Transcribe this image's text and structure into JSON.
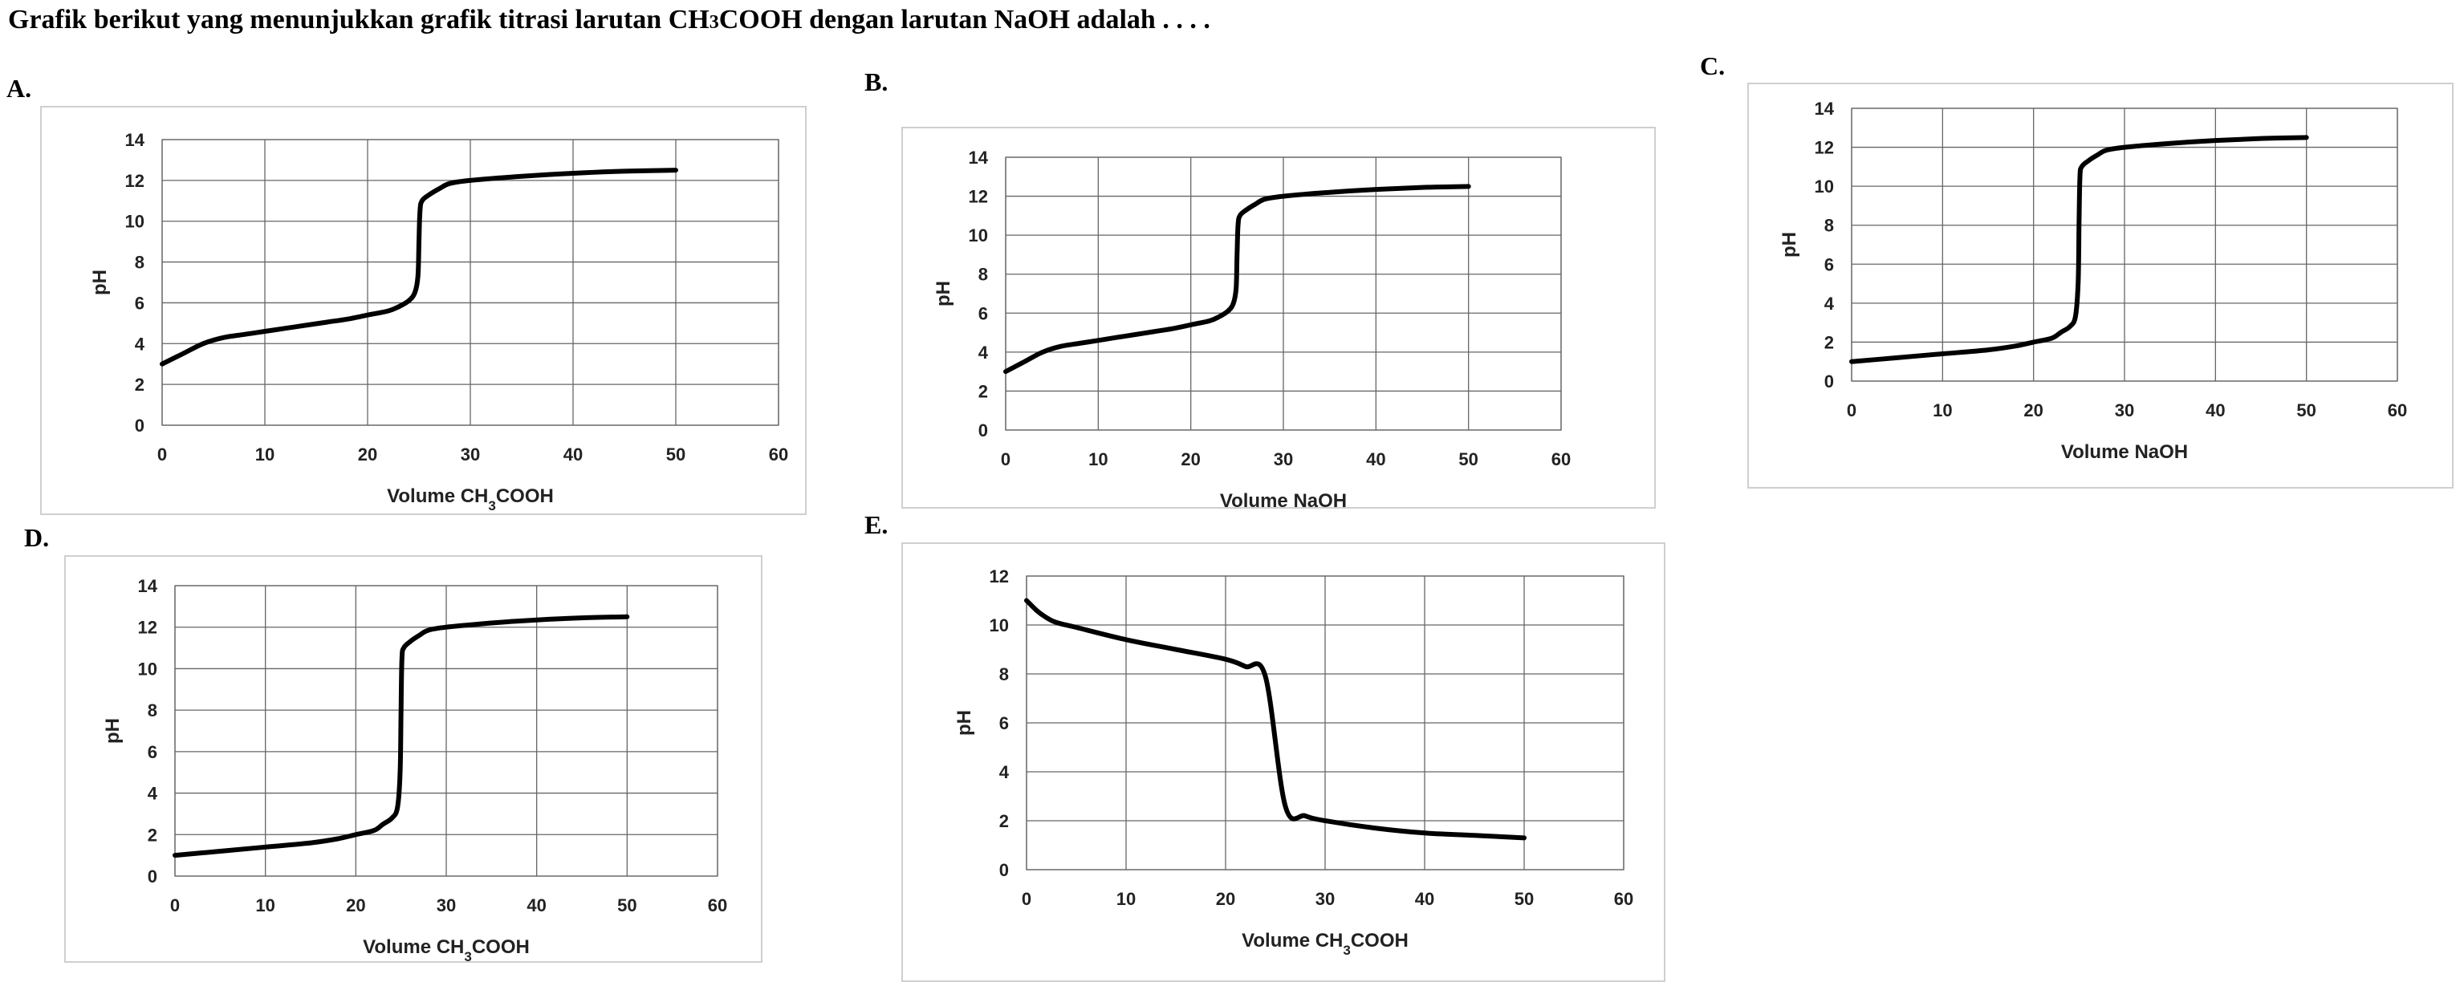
{
  "question": {
    "text_before": "Grafik berikut yang menunjukkan grafik titrasi larutan CH",
    "sub": "3",
    "text_after": "COOH dengan larutan  NaOH adalah . . . ."
  },
  "chart_data": [
    {
      "type": "line",
      "label": "A.",
      "xlabel": "Volume CH3COOH",
      "ylabel": "pH",
      "xlim": [
        0,
        60
      ],
      "ylim": [
        0,
        14
      ],
      "xticks": [
        0,
        10,
        20,
        30,
        40,
        50,
        60
      ],
      "yticks": [
        0,
        2,
        4,
        6,
        8,
        10,
        12,
        14
      ],
      "grid": true,
      "x": [
        0,
        2,
        4,
        6,
        8,
        10,
        12,
        14,
        16,
        18,
        20,
        22,
        23,
        24,
        24.6,
        24.9,
        25,
        25.1,
        25.3,
        26,
        27,
        28,
        30,
        35,
        40,
        45,
        50
      ],
      "y": [
        3.0,
        3.5,
        4.0,
        4.3,
        4.45,
        4.6,
        4.75,
        4.9,
        5.05,
        5.2,
        5.4,
        5.6,
        5.8,
        6.1,
        6.5,
        7.3,
        9.0,
        10.5,
        11.0,
        11.3,
        11.6,
        11.85,
        12.0,
        12.2,
        12.35,
        12.45,
        12.5
      ]
    },
    {
      "type": "line",
      "label": "B.",
      "xlabel": "Volume NaOH",
      "ylabel": "pH",
      "xlim": [
        0,
        60
      ],
      "ylim": [
        0,
        14
      ],
      "xticks": [
        0,
        10,
        20,
        30,
        40,
        50,
        60
      ],
      "yticks": [
        0,
        2,
        4,
        6,
        8,
        10,
        12,
        14
      ],
      "grid": true,
      "x": [
        0,
        2,
        4,
        6,
        8,
        10,
        12,
        14,
        16,
        18,
        20,
        22,
        23,
        24,
        24.6,
        24.9,
        25,
        25.1,
        25.3,
        26,
        27,
        28,
        30,
        35,
        40,
        45,
        50
      ],
      "y": [
        3.0,
        3.5,
        4.0,
        4.3,
        4.45,
        4.6,
        4.75,
        4.9,
        5.05,
        5.2,
        5.4,
        5.6,
        5.8,
        6.1,
        6.5,
        7.3,
        9.0,
        10.5,
        11.0,
        11.3,
        11.6,
        11.85,
        12.0,
        12.2,
        12.35,
        12.45,
        12.5
      ]
    },
    {
      "type": "line",
      "label": "C.",
      "xlabel": "Volume NaOH",
      "ylabel": "pH",
      "xlim": [
        0,
        60
      ],
      "ylim": [
        0,
        14
      ],
      "xticks": [
        0,
        10,
        20,
        30,
        40,
        50,
        60
      ],
      "yticks": [
        0,
        2,
        4,
        6,
        8,
        10,
        12,
        14
      ],
      "grid": true,
      "x": [
        0,
        5,
        10,
        15,
        18,
        20,
        22,
        23,
        24,
        24.6,
        24.9,
        25,
        25.1,
        25.3,
        26,
        27,
        28,
        30,
        35,
        40,
        45,
        50
      ],
      "y": [
        1.0,
        1.2,
        1.4,
        1.6,
        1.8,
        2.0,
        2.2,
        2.5,
        2.8,
        3.3,
        5.0,
        8.0,
        10.5,
        11.0,
        11.3,
        11.6,
        11.85,
        12.0,
        12.2,
        12.35,
        12.45,
        12.5
      ]
    },
    {
      "type": "line",
      "label": "D.",
      "xlabel": "Volume CH3COOH",
      "ylabel": "pH",
      "xlim": [
        0,
        60
      ],
      "ylim": [
        0,
        14
      ],
      "xticks": [
        0,
        10,
        20,
        30,
        40,
        50,
        60
      ],
      "yticks": [
        0,
        2,
        4,
        6,
        8,
        10,
        12,
        14
      ],
      "grid": true,
      "x": [
        0,
        5,
        10,
        15,
        18,
        20,
        22,
        23,
        24,
        24.6,
        24.9,
        25,
        25.1,
        25.3,
        26,
        27,
        28,
        30,
        35,
        40,
        45,
        50
      ],
      "y": [
        1.0,
        1.2,
        1.4,
        1.6,
        1.8,
        2.0,
        2.2,
        2.5,
        2.8,
        3.3,
        5.0,
        8.0,
        10.5,
        11.0,
        11.3,
        11.6,
        11.85,
        12.0,
        12.2,
        12.35,
        12.45,
        12.5
      ]
    },
    {
      "type": "line",
      "label": "E.",
      "xlabel": "Volume CH3COOH",
      "ylabel": "pH",
      "xlim": [
        0,
        60
      ],
      "ylim": [
        0,
        12
      ],
      "xticks": [
        0,
        10,
        20,
        30,
        40,
        50,
        60
      ],
      "yticks": [
        0,
        2,
        4,
        6,
        8,
        10,
        12
      ],
      "grid": true,
      "x": [
        0,
        1,
        2,
        3,
        5,
        10,
        15,
        20,
        22,
        24,
        26,
        28,
        30,
        35,
        40,
        45,
        50
      ],
      "y": [
        11.0,
        10.6,
        10.3,
        10.1,
        9.9,
        9.4,
        9.0,
        8.6,
        8.3,
        7.9,
        2.6,
        2.2,
        2.0,
        1.7,
        1.5,
        1.4,
        1.3
      ]
    }
  ]
}
